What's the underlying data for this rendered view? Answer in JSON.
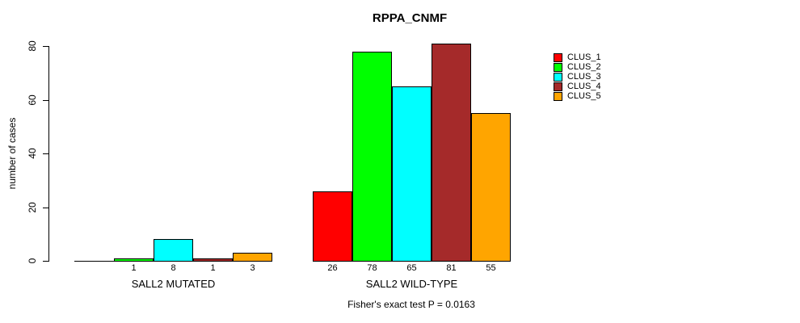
{
  "chart_data": {
    "type": "bar",
    "title": "RPPA_CNMF",
    "ylabel": "number of cases",
    "ylim": [
      0,
      80
    ],
    "yticks": [
      0,
      20,
      40,
      60,
      80
    ],
    "grid": false,
    "legend_position": "top-right",
    "background_color": "#ffffff",
    "series": [
      {
        "name": "CLUS_1",
        "color": "#FF0000"
      },
      {
        "name": "CLUS_2",
        "color": "#00FF00"
      },
      {
        "name": "CLUS_3",
        "color": "#00FFFF"
      },
      {
        "name": "CLUS_4",
        "color": "#A52A2A"
      },
      {
        "name": "CLUS_5",
        "color": "#FFA500"
      }
    ],
    "groups": [
      {
        "label": "SALL2 MUTATED",
        "values": [
          0,
          1,
          8,
          1,
          3
        ],
        "value_labels": [
          "",
          "1",
          "8",
          "1",
          "3"
        ]
      },
      {
        "label": "SALL2 WILD-TYPE",
        "values": [
          26,
          78,
          65,
          81,
          55
        ],
        "value_labels": [
          "26",
          "78",
          "65",
          "81",
          "55"
        ]
      }
    ],
    "annotation": "Fisher's exact test P = 0.0163"
  }
}
